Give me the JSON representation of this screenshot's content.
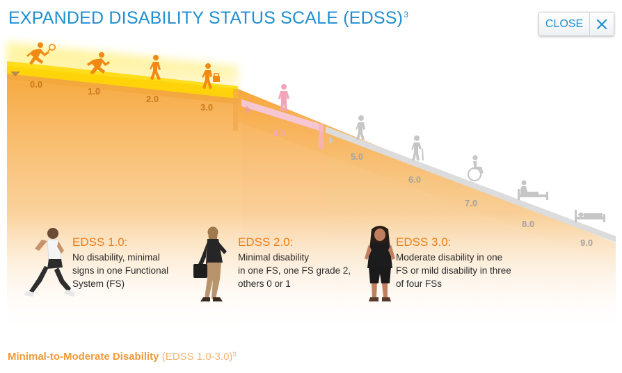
{
  "header": {
    "title": "EXPANDED DISABILITY STATUS SCALE (EDSS)",
    "title_superscript": "3",
    "close_label": "CLOSE"
  },
  "scale": {
    "levels": [
      {
        "label": "0.0",
        "icon": "tennis-player-icon"
      },
      {
        "label": "1.0",
        "icon": "runner-icon"
      },
      {
        "label": "2.0",
        "icon": "walking-person-icon"
      },
      {
        "label": "3.0",
        "icon": "person-carrying-bag-icon"
      },
      {
        "label": "4.0",
        "icon": "standing-person-icon"
      },
      {
        "label": "5.0",
        "icon": "slow-walking-person-icon"
      },
      {
        "label": "6.0",
        "icon": "person-with-cane-icon"
      },
      {
        "label": "7.0",
        "icon": "wheelchair-icon"
      },
      {
        "label": "8.0",
        "icon": "person-in-bed-icon"
      },
      {
        "label": "9.0",
        "icon": "bed-icon"
      }
    ]
  },
  "descriptions": [
    {
      "heading": "EDSS 1.0:",
      "lines": [
        "No disability, minimal",
        "signs in one Functional",
        "System (FS)"
      ]
    },
    {
      "heading": "EDSS 2.0:",
      "lines": [
        "Minimal disability",
        "in one FS, one FS grade 2,",
        "others 0 or 1"
      ]
    },
    {
      "heading": "EDSS 3.0:",
      "lines": [
        "Moderate disability in one",
        "FS or mild disability in three",
        "of four FSs"
      ]
    }
  ],
  "footer": {
    "label": "Minimal-to-Moderate Disability",
    "range": "(EDSS 1.0-3.0)",
    "superscript": "3"
  },
  "colors": {
    "title": "#1f8fd0",
    "highlight_orange": "#f6a538",
    "highlight_yellow": "#ffd800",
    "pink": "#f4b2c4",
    "grey": "#d8d8d8",
    "heading_orange": "#ee7d14"
  }
}
